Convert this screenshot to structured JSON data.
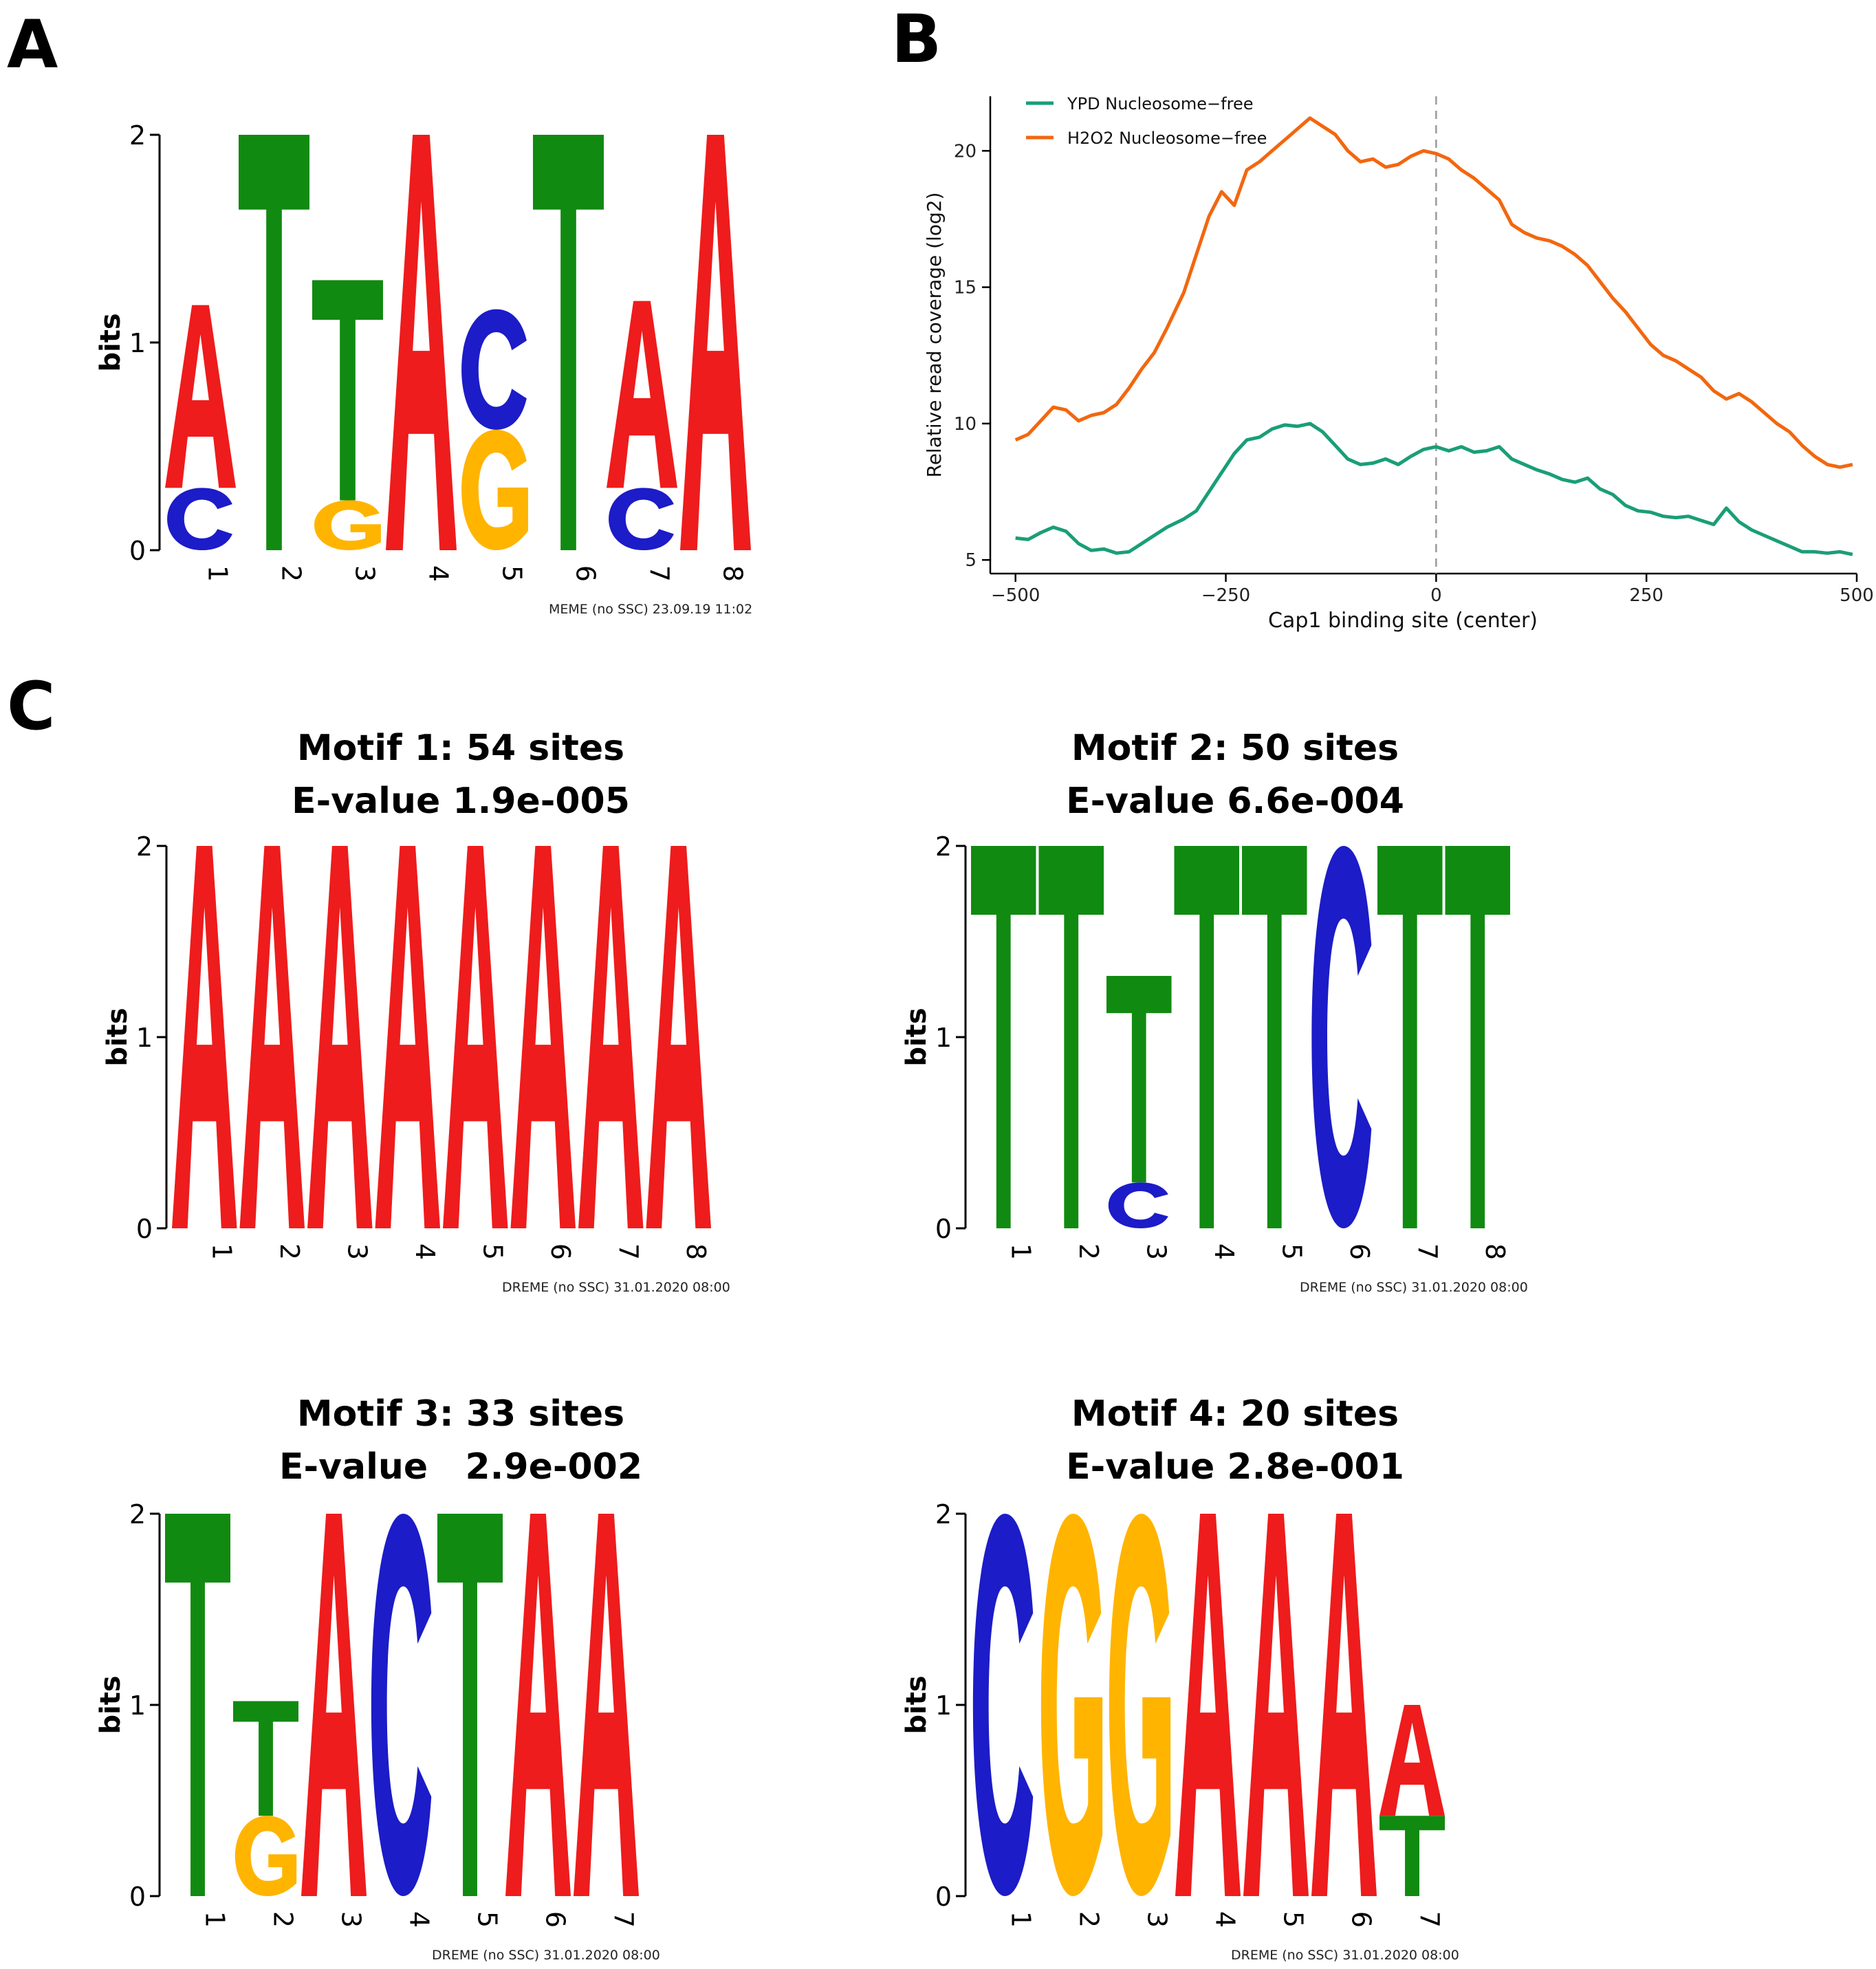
{
  "panel_labels": {
    "a": "A",
    "b": "B",
    "c": "C"
  },
  "colors": {
    "A": "#ee1c1c",
    "C": "#1c1cc8",
    "G": "#ffb400",
    "T": "#118a11",
    "ypd": "#1a9e77",
    "h2o2": "#f2670f",
    "axis": "#000000"
  },
  "chart_data": [
    {
      "id": "panel-a",
      "type": "sequence-logo",
      "ylabel": "bits",
      "ylim": [
        0,
        2
      ],
      "yticks": [
        0,
        1,
        2
      ],
      "footer": "MEME (no SSC) 23.09.19 11:02",
      "positions": [
        {
          "pos": "1",
          "stack": [
            {
              "letter": "C",
              "bits": 0.3
            },
            {
              "letter": "A",
              "bits": 0.88
            }
          ]
        },
        {
          "pos": "2",
          "stack": [
            {
              "letter": "T",
              "bits": 2.0
            }
          ]
        },
        {
          "pos": "3",
          "stack": [
            {
              "letter": "G",
              "bits": 0.24
            },
            {
              "letter": "T",
              "bits": 1.06
            }
          ]
        },
        {
          "pos": "4",
          "stack": [
            {
              "letter": "A",
              "bits": 2.0
            }
          ]
        },
        {
          "pos": "5",
          "stack": [
            {
              "letter": "G",
              "bits": 0.58
            },
            {
              "letter": "C",
              "bits": 0.58
            }
          ]
        },
        {
          "pos": "6",
          "stack": [
            {
              "letter": "T",
              "bits": 2.0
            }
          ]
        },
        {
          "pos": "7",
          "stack": [
            {
              "letter": "C",
              "bits": 0.3
            },
            {
              "letter": "A",
              "bits": 0.9
            }
          ]
        },
        {
          "pos": "8",
          "stack": [
            {
              "letter": "A",
              "bits": 2.0
            }
          ]
        }
      ]
    },
    {
      "id": "panel-b",
      "type": "line",
      "xlabel": "Cap1 binding site (center)",
      "ylabel": "Relative read coverage (log2)",
      "xlim": [
        -530,
        500
      ],
      "ylim": [
        4.5,
        22
      ],
      "xticks": [
        -500,
        -250,
        0,
        250,
        500
      ],
      "xtick_labels": [
        "−500",
        "−250",
        "0",
        "250",
        "500"
      ],
      "yticks": [
        5,
        10,
        15,
        20
      ],
      "vline": 0,
      "legend_position": "top-left",
      "series": [
        {
          "name": "YPD Nucleosome−free",
          "color_key": "ypd",
          "x": [
            -500,
            -485,
            -470,
            -455,
            -440,
            -425,
            -410,
            -395,
            -380,
            -365,
            -350,
            -335,
            -320,
            -300,
            -285,
            -270,
            -255,
            -240,
            -225,
            -210,
            -195,
            -180,
            -165,
            -150,
            -135,
            -120,
            -105,
            -90,
            -75,
            -60,
            -45,
            -30,
            -15,
            0,
            15,
            30,
            45,
            60,
            75,
            90,
            105,
            120,
            135,
            150,
            165,
            180,
            195,
            210,
            225,
            240,
            255,
            270,
            285,
            300,
            315,
            330,
            345,
            360,
            375,
            390,
            405,
            420,
            435,
            450,
            465,
            480,
            495
          ],
          "y": [
            5.8,
            5.75,
            6.0,
            6.2,
            6.05,
            5.6,
            5.35,
            5.4,
            5.25,
            5.3,
            5.6,
            5.9,
            6.2,
            6.5,
            6.8,
            7.5,
            8.2,
            8.9,
            9.4,
            9.5,
            9.8,
            9.95,
            9.9,
            10.0,
            9.7,
            9.2,
            8.7,
            8.5,
            8.55,
            8.7,
            8.5,
            8.8,
            9.05,
            9.15,
            9.0,
            9.15,
            8.95,
            9.0,
            9.15,
            8.7,
            8.5,
            8.3,
            8.15,
            7.95,
            7.85,
            8.0,
            7.6,
            7.4,
            7.0,
            6.8,
            6.75,
            6.6,
            6.55,
            6.6,
            6.45,
            6.3,
            6.9,
            6.4,
            6.1,
            5.9,
            5.7,
            5.5,
            5.3,
            5.3,
            5.25,
            5.3,
            5.2
          ]
        },
        {
          "name": "H2O2 Nucleosome−free",
          "color_key": "h2o2",
          "x": [
            -500,
            -485,
            -470,
            -455,
            -440,
            -425,
            -410,
            -395,
            -380,
            -365,
            -350,
            -335,
            -320,
            -300,
            -285,
            -270,
            -255,
            -240,
            -225,
            -210,
            -195,
            -180,
            -165,
            -150,
            -135,
            -120,
            -105,
            -90,
            -75,
            -60,
            -45,
            -30,
            -15,
            0,
            15,
            30,
            45,
            60,
            75,
            90,
            105,
            120,
            135,
            150,
            165,
            180,
            195,
            210,
            225,
            240,
            255,
            270,
            285,
            300,
            315,
            330,
            345,
            360,
            375,
            390,
            405,
            420,
            435,
            450,
            465,
            480,
            495
          ],
          "y": [
            9.4,
            9.6,
            10.1,
            10.6,
            10.5,
            10.1,
            10.3,
            10.4,
            10.7,
            11.3,
            12.0,
            12.6,
            13.5,
            14.8,
            16.2,
            17.6,
            18.5,
            18.0,
            19.3,
            19.6,
            20.0,
            20.4,
            20.8,
            21.2,
            20.9,
            20.6,
            20.0,
            19.6,
            19.7,
            19.4,
            19.5,
            19.8,
            20.0,
            19.9,
            19.7,
            19.3,
            19.0,
            18.6,
            18.2,
            17.3,
            17.0,
            16.8,
            16.7,
            16.5,
            16.2,
            15.8,
            15.2,
            14.6,
            14.1,
            13.5,
            12.9,
            12.5,
            12.3,
            12.0,
            11.7,
            11.2,
            10.9,
            11.1,
            10.8,
            10.4,
            10.0,
            9.7,
            9.2,
            8.8,
            8.5,
            8.4,
            8.5
          ]
        }
      ]
    },
    {
      "id": "motif-1",
      "type": "sequence-logo",
      "title": "Motif 1: 54 sites",
      "subtitle": "E-value 1.9e-005",
      "ylabel": "bits",
      "ylim": [
        0,
        2
      ],
      "yticks": [
        0,
        1,
        2
      ],
      "footer": "DREME (no SSC) 31.01.2020 08:00",
      "positions": [
        {
          "pos": "1",
          "stack": [
            {
              "letter": "A",
              "bits": 2.0
            }
          ]
        },
        {
          "pos": "2",
          "stack": [
            {
              "letter": "A",
              "bits": 2.0
            }
          ]
        },
        {
          "pos": "3",
          "stack": [
            {
              "letter": "A",
              "bits": 2.0
            }
          ]
        },
        {
          "pos": "4",
          "stack": [
            {
              "letter": "A",
              "bits": 2.0
            }
          ]
        },
        {
          "pos": "5",
          "stack": [
            {
              "letter": "A",
              "bits": 2.0
            }
          ]
        },
        {
          "pos": "6",
          "stack": [
            {
              "letter": "A",
              "bits": 2.0
            }
          ]
        },
        {
          "pos": "7",
          "stack": [
            {
              "letter": "A",
              "bits": 2.0
            }
          ]
        },
        {
          "pos": "8",
          "stack": [
            {
              "letter": "A",
              "bits": 2.0
            }
          ]
        }
      ]
    },
    {
      "id": "motif-2",
      "type": "sequence-logo",
      "title": "Motif 2: 50 sites",
      "subtitle": "E-value 6.6e-004",
      "ylabel": "bits",
      "ylim": [
        0,
        2
      ],
      "yticks": [
        0,
        1,
        2
      ],
      "footer": "DREME (no SSC) 31.01.2020 08:00",
      "positions": [
        {
          "pos": "1",
          "stack": [
            {
              "letter": "T",
              "bits": 2.0
            }
          ]
        },
        {
          "pos": "2",
          "stack": [
            {
              "letter": "T",
              "bits": 2.0
            }
          ]
        },
        {
          "pos": "3",
          "stack": [
            {
              "letter": "C",
              "bits": 0.24
            },
            {
              "letter": "T",
              "bits": 1.08
            }
          ]
        },
        {
          "pos": "4",
          "stack": [
            {
              "letter": "T",
              "bits": 2.0
            }
          ]
        },
        {
          "pos": "5",
          "stack": [
            {
              "letter": "T",
              "bits": 2.0
            }
          ]
        },
        {
          "pos": "6",
          "stack": [
            {
              "letter": "C",
              "bits": 2.0
            }
          ]
        },
        {
          "pos": "7",
          "stack": [
            {
              "letter": "T",
              "bits": 2.0
            }
          ]
        },
        {
          "pos": "8",
          "stack": [
            {
              "letter": "T",
              "bits": 2.0
            }
          ]
        }
      ]
    },
    {
      "id": "motif-3",
      "type": "sequence-logo",
      "title": "Motif 3: 33 sites",
      "subtitle": "E-value   2.9e-002",
      "ylabel": "bits",
      "ylim": [
        0,
        2
      ],
      "yticks": [
        0,
        1,
        2
      ],
      "footer": "DREME (no SSC) 31.01.2020 08:00",
      "positions": [
        {
          "pos": "1",
          "stack": [
            {
              "letter": "T",
              "bits": 2.0
            }
          ]
        },
        {
          "pos": "2",
          "stack": [
            {
              "letter": "G",
              "bits": 0.42
            },
            {
              "letter": "T",
              "bits": 0.6
            }
          ]
        },
        {
          "pos": "3",
          "stack": [
            {
              "letter": "A",
              "bits": 2.0
            }
          ]
        },
        {
          "pos": "4",
          "stack": [
            {
              "letter": "C",
              "bits": 2.0
            }
          ]
        },
        {
          "pos": "5",
          "stack": [
            {
              "letter": "T",
              "bits": 2.0
            }
          ]
        },
        {
          "pos": "6",
          "stack": [
            {
              "letter": "A",
              "bits": 2.0
            }
          ]
        },
        {
          "pos": "7",
          "stack": [
            {
              "letter": "A",
              "bits": 2.0
            }
          ]
        }
      ]
    },
    {
      "id": "motif-4",
      "type": "sequence-logo",
      "title": "Motif 4: 20 sites",
      "subtitle": "E-value 2.8e-001",
      "ylabel": "bits",
      "ylim": [
        0,
        2
      ],
      "yticks": [
        0,
        1,
        2
      ],
      "footer": "DREME (no SSC) 31.01.2020 08:00",
      "positions": [
        {
          "pos": "1",
          "stack": [
            {
              "letter": "C",
              "bits": 2.0
            }
          ]
        },
        {
          "pos": "2",
          "stack": [
            {
              "letter": "G",
              "bits": 2.0
            }
          ]
        },
        {
          "pos": "3",
          "stack": [
            {
              "letter": "G",
              "bits": 2.0
            }
          ]
        },
        {
          "pos": "4",
          "stack": [
            {
              "letter": "A",
              "bits": 2.0
            }
          ]
        },
        {
          "pos": "5",
          "stack": [
            {
              "letter": "A",
              "bits": 2.0
            }
          ]
        },
        {
          "pos": "6",
          "stack": [
            {
              "letter": "A",
              "bits": 2.0
            }
          ]
        },
        {
          "pos": "7",
          "stack": [
            {
              "letter": "T",
              "bits": 0.42
            },
            {
              "letter": "A",
              "bits": 0.58
            }
          ]
        }
      ]
    }
  ]
}
